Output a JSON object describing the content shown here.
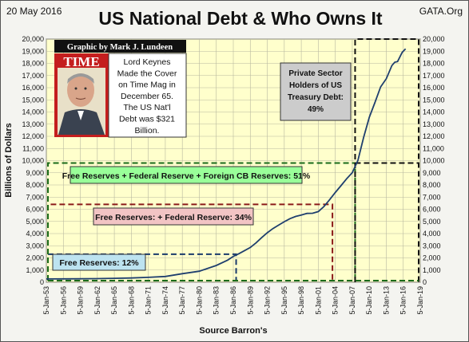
{
  "header": {
    "date": "20 May 2016",
    "title": "US National Debt & Who Owns It",
    "source_site": "GATA.Org"
  },
  "credit": "Graphic by Mark J. Lundeen",
  "magazine": {
    "masthead": "TIME",
    "note": [
      "Lord Keynes",
      "Made the Cover",
      "on Time Mag in",
      "December 65.",
      "The US Nat'l",
      "Debt was $321",
      "Billion."
    ]
  },
  "colors": {
    "plot_bg": "#ffffcc",
    "grid": "#b8b8a0",
    "line": "#1f3f6e",
    "green_box": "#99ff99",
    "pink_box": "#f2c4c4",
    "blue_box": "#bde3f0",
    "gray_box": "#cccccc",
    "green_dash": "#1a6b1a",
    "red_dash": "#8b1a1a",
    "blue_dash": "#1a3a6b",
    "black_dash": "#111111"
  },
  "annotations": {
    "private": [
      "Private Sector",
      "Holders of US",
      "Treasury Debt:",
      "49%"
    ],
    "green": "Free Reserves + Federal Reserve + Foreign CB Reserves: 51%",
    "red": "Free Reserves: + Federal Reserve: 34%",
    "blue": "Free Reserves: 12%"
  },
  "chart_data": {
    "type": "line",
    "title": "US National Debt & Who Owns It",
    "xlabel": "Source Barron's",
    "ylabel": "Billions of Dollars",
    "ylim": [
      0,
      20000
    ],
    "y_ticks": [
      0,
      1000,
      2000,
      3000,
      4000,
      5000,
      6000,
      7000,
      8000,
      9000,
      10000,
      11000,
      12000,
      13000,
      14000,
      15000,
      16000,
      17000,
      18000,
      19000,
      20000
    ],
    "y_tick_labels": [
      "0",
      "1,000",
      "2,000",
      "3,000",
      "4,000",
      "5,000",
      "6,000",
      "7,000",
      "8,000",
      "9,000",
      "10,000",
      "11,000",
      "12,000",
      "13,000",
      "14,000",
      "15,000",
      "16,000",
      "17,000",
      "18,000",
      "19,000",
      "20,000"
    ],
    "xlim": [
      1953,
      2019
    ],
    "x_ticks": [
      1953,
      1956,
      1959,
      1962,
      1965,
      1968,
      1971,
      1974,
      1977,
      1980,
      1983,
      1986,
      1989,
      1992,
      1995,
      1998,
      2001,
      2004,
      2007,
      2010,
      2013,
      2016,
      2019
    ],
    "x_tick_labels": [
      "5-Jan-53",
      "5-Jan-56",
      "5-Jan-59",
      "5-Jan-62",
      "5-Jan-65",
      "5-Jan-68",
      "5-Jan-71",
      "5-Jan-74",
      "5-Jan-77",
      "5-Jan-80",
      "5-Jan-83",
      "5-Jan-86",
      "5-Jan-89",
      "5-Jan-92",
      "5-Jan-95",
      "5-Jan-98",
      "5-Jan-01",
      "5-Jan-04",
      "5-Jan-07",
      "5-Jan-10",
      "5-Jan-13",
      "5-Jan-16",
      "5-Jan-19"
    ],
    "grid": true,
    "series": [
      {
        "x": [
          1953,
          1956,
          1959,
          1962,
          1965,
          1968,
          1971,
          1974,
          1977,
          1980,
          1983,
          1985,
          1986,
          1987,
          1988,
          1989,
          1990,
          1991,
          1992,
          1993,
          1994,
          1995,
          1996,
          1997,
          1998,
          1999,
          2000,
          2001,
          2002,
          2003,
          2004,
          2005,
          2006,
          2007,
          2008,
          2009,
          2010,
          2011,
          2012,
          2013,
          2014,
          2014.5,
          2015,
          2015.8,
          2016.4
        ],
        "y": [
          266,
          273,
          285,
          298,
          321,
          347,
          398,
          475,
          699,
          907,
          1377,
          1817,
          2125,
          2350,
          2602,
          2857,
          3233,
          3665,
          4065,
          4411,
          4693,
          4974,
          5225,
          5413,
          5526,
          5656,
          5674,
          5807,
          6228,
          6783,
          7379,
          7933,
          8507,
          9008,
          10025,
          11910,
          13562,
          14790,
          16066,
          16738,
          17824,
          18100,
          18150,
          18900,
          19200
        ]
      }
    ],
    "levels": [
      {
        "label": "Free Reserves: 12%",
        "y": 2300,
        "x_end": 1986.5
      },
      {
        "label": "Free Reserves: + Federal Reserve: 34%",
        "y": 6400,
        "x_end": 2003.5
      },
      {
        "label": "Free Reserves + Federal Reserve + Foreign CB Reserves: 51%",
        "y": 9800,
        "x_end": 2007.5
      },
      {
        "label": "Private Sector Holders of US Treasury Debt: 49%",
        "y": 20000,
        "x_start": 2007.5
      }
    ]
  }
}
